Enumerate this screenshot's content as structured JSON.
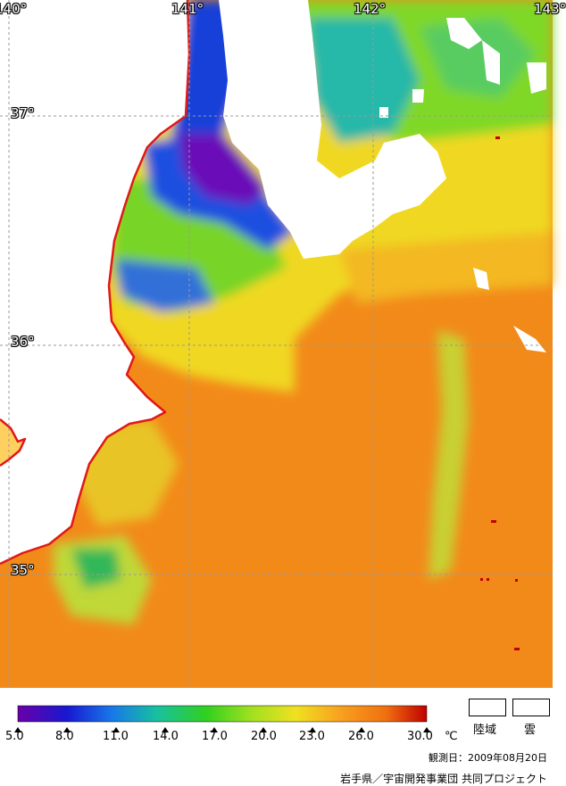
{
  "map": {
    "lon_labels": [
      "140°",
      "141°",
      "142°",
      "143°"
    ],
    "lat_labels": [
      "37°",
      "36°",
      "35°"
    ]
  },
  "legend": {
    "tick_labels": [
      "5.0",
      "8.0",
      "11.0",
      "14.0",
      "17.0",
      "20.0",
      "23.0",
      "26.0",
      "30.0"
    ],
    "unit": "℃",
    "colors": [
      "#6a00a8",
      "#1818d0",
      "#1878e8",
      "#18c0a0",
      "#30d020",
      "#a0e020",
      "#f0e020",
      "#f8a020",
      "#f07010",
      "#c00000"
    ],
    "land_label": "陸域",
    "cloud_label": "雲"
  },
  "observation_date": "観測日：2009年08月20日",
  "credit": "岩手県／宇宙開発事業団 共同プロジェクト",
  "colors": {
    "land": "#ffffff",
    "coastline": "#e01818",
    "grid": "#9a9a9a",
    "warm_sea": "#f08c1c"
  }
}
